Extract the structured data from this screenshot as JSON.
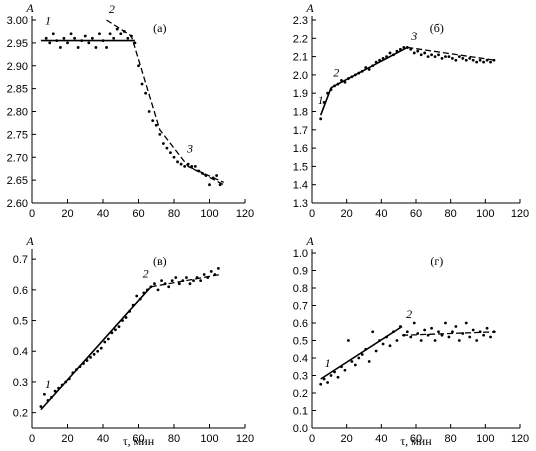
{
  "chart_data": [
    {
      "type": "scatter",
      "panel": "(a)",
      "ylabel": "A",
      "xlabel": "",
      "xlim": [
        0,
        120
      ],
      "ylim": [
        2.6,
        3.0
      ],
      "x_ticks": [
        0,
        20,
        40,
        60,
        80,
        100,
        120
      ],
      "y_ticks": [
        2.6,
        2.65,
        2.7,
        2.75,
        2.8,
        2.85,
        2.9,
        2.95,
        3.0
      ],
      "y_tick_labels": [
        "2.60",
        "2.65",
        "2.70",
        "2.75",
        "2.80",
        "2.85",
        "2.90",
        "2.95",
        "3.00"
      ],
      "points": {
        "x": [
          8,
          10,
          12,
          14,
          16,
          18,
          20,
          22,
          24,
          26,
          28,
          30,
          32,
          34,
          36,
          38,
          40,
          42,
          44,
          46,
          48,
          50,
          52,
          54,
          56,
          58,
          60,
          62,
          64,
          66,
          68,
          70,
          72,
          74,
          76,
          78,
          80,
          82,
          84,
          86,
          88,
          90,
          92,
          94,
          96,
          98,
          100,
          102,
          104,
          106
        ],
        "y": [
          2.96,
          2.95,
          2.97,
          2.955,
          2.94,
          2.96,
          2.95,
          2.97,
          2.96,
          2.94,
          2.955,
          2.965,
          2.95,
          2.96,
          2.94,
          2.97,
          2.955,
          2.94,
          2.97,
          2.96,
          2.98,
          2.97,
          2.975,
          2.96,
          2.965,
          2.95,
          2.9,
          2.86,
          2.84,
          2.8,
          2.78,
          2.77,
          2.75,
          2.73,
          2.72,
          2.71,
          2.7,
          2.69,
          2.685,
          2.68,
          2.685,
          2.68,
          2.68,
          2.67,
          2.665,
          2.66,
          2.64,
          2.655,
          2.66,
          2.64
        ]
      },
      "fits": [
        {
          "label": "1",
          "style": "solid",
          "x": [
            5,
            58
          ],
          "y": [
            2.955,
            2.955
          ]
        },
        {
          "label": "2",
          "style": "dashed",
          "x": [
            42,
            56,
            72,
            88,
            108
          ],
          "y": [
            3.0,
            2.965,
            2.76,
            2.68,
            2.64
          ]
        },
        {
          "label": "3",
          "style": "dashed",
          "x": [
            88,
            108
          ],
          "y": [
            2.68,
            2.645
          ]
        }
      ],
      "labels": [
        {
          "text": "1",
          "x": 9,
          "y": 2.99
        },
        {
          "text": "2",
          "x": 45,
          "y": 3.015
        },
        {
          "text": "3",
          "x": 89,
          "y": 2.71
        }
      ]
    },
    {
      "type": "scatter",
      "panel": "(б)",
      "ylabel": "A",
      "xlabel": "",
      "xlim": [
        0,
        120
      ],
      "ylim": [
        1.3,
        2.3
      ],
      "x_ticks": [
        0,
        20,
        40,
        60,
        80,
        100,
        120
      ],
      "y_ticks": [
        1.3,
        1.4,
        1.5,
        1.6,
        1.7,
        1.8,
        1.9,
        2.0,
        2.1,
        2.2,
        2.3
      ],
      "y_tick_labels": [
        "1.3",
        "1.4",
        "1.5",
        "1.6",
        "1.7",
        "1.8",
        "1.9",
        "2.0",
        "2.1",
        "2.2",
        "2.3"
      ],
      "points": {
        "x": [
          5,
          7,
          9,
          11,
          13,
          15,
          17,
          19,
          21,
          23,
          25,
          27,
          29,
          31,
          33,
          35,
          37,
          39,
          41,
          43,
          45,
          47,
          49,
          51,
          53,
          55,
          57,
          59,
          61,
          63,
          65,
          67,
          69,
          71,
          73,
          75,
          77,
          79,
          81,
          83,
          85,
          87,
          89,
          91,
          93,
          95,
          97,
          99,
          101,
          103,
          105
        ],
        "y": [
          1.76,
          1.85,
          1.9,
          1.92,
          1.94,
          1.95,
          1.97,
          1.96,
          1.98,
          1.99,
          2.0,
          2.01,
          2.02,
          2.04,
          2.03,
          2.05,
          2.07,
          2.08,
          2.09,
          2.1,
          2.12,
          2.11,
          2.13,
          2.14,
          2.15,
          2.15,
          2.14,
          2.12,
          2.13,
          2.11,
          2.12,
          2.1,
          2.11,
          2.1,
          2.11,
          2.09,
          2.1,
          2.1,
          2.09,
          2.08,
          2.1,
          2.09,
          2.08,
          2.09,
          2.08,
          2.07,
          2.08,
          2.07,
          2.08,
          2.07,
          2.08
        ]
      },
      "fits": [
        {
          "label": "1",
          "style": "solid",
          "x": [
            5,
            11
          ],
          "y": [
            1.78,
            1.93
          ]
        },
        {
          "label": "2",
          "style": "solid",
          "x": [
            11,
            55
          ],
          "y": [
            1.93,
            2.15
          ]
        },
        {
          "label": "3",
          "style": "dashed",
          "x": [
            55,
            106
          ],
          "y": [
            2.15,
            2.08
          ]
        }
      ],
      "labels": [
        {
          "text": "1",
          "x": 5,
          "y": 1.84
        },
        {
          "text": "2",
          "x": 14,
          "y": 1.99
        },
        {
          "text": "3",
          "x": 59,
          "y": 2.19
        }
      ]
    },
    {
      "type": "scatter",
      "panel": "(в)",
      "ylabel": "A",
      "xlabel": "τ, мин",
      "xlim": [
        0,
        120
      ],
      "ylim": [
        0.15,
        0.72
      ],
      "x_ticks": [
        0,
        20,
        40,
        60,
        80,
        100,
        120
      ],
      "y_ticks": [
        0.2,
        0.3,
        0.4,
        0.5,
        0.6,
        0.7
      ],
      "y_tick_labels": [
        "0.2",
        "0.3",
        "0.4",
        "0.5",
        "0.6",
        "0.7"
      ],
      "points": {
        "x": [
          5,
          7,
          9,
          11,
          13,
          15,
          17,
          19,
          21,
          23,
          25,
          27,
          29,
          31,
          33,
          35,
          37,
          39,
          41,
          43,
          45,
          47,
          49,
          51,
          53,
          55,
          57,
          59,
          61,
          63,
          65,
          67,
          69,
          71,
          73,
          75,
          77,
          79,
          81,
          83,
          85,
          87,
          89,
          91,
          93,
          95,
          97,
          99,
          101,
          103,
          105
        ],
        "y": [
          0.22,
          0.26,
          0.24,
          0.25,
          0.27,
          0.28,
          0.29,
          0.3,
          0.31,
          0.33,
          0.34,
          0.35,
          0.36,
          0.37,
          0.38,
          0.39,
          0.4,
          0.41,
          0.43,
          0.44,
          0.46,
          0.47,
          0.48,
          0.5,
          0.51,
          0.53,
          0.55,
          0.58,
          0.57,
          0.59,
          0.6,
          0.61,
          0.62,
          0.6,
          0.63,
          0.62,
          0.61,
          0.63,
          0.64,
          0.62,
          0.63,
          0.64,
          0.62,
          0.63,
          0.64,
          0.63,
          0.65,
          0.64,
          0.66,
          0.65,
          0.67
        ]
      },
      "fits": [
        {
          "label": "1",
          "style": "solid",
          "x": [
            5,
            67
          ],
          "y": [
            0.21,
            0.61
          ]
        },
        {
          "label": "2",
          "style": "dashed",
          "x": [
            67,
            106
          ],
          "y": [
            0.61,
            0.65
          ]
        }
      ],
      "labels": [
        {
          "text": "1",
          "x": 9,
          "y": 0.28
        },
        {
          "text": "2",
          "x": 64,
          "y": 0.64
        }
      ]
    },
    {
      "type": "scatter",
      "panel": "(г)",
      "ylabel": "A",
      "xlabel": "τ, мин",
      "xlim": [
        0,
        120
      ],
      "ylim": [
        0.0,
        1.0
      ],
      "x_ticks": [
        0,
        20,
        40,
        60,
        80,
        100,
        120
      ],
      "y_ticks": [
        0.0,
        0.1,
        0.2,
        0.3,
        0.4,
        0.5,
        0.6,
        0.7,
        0.8,
        0.9,
        1.0
      ],
      "y_tick_labels": [
        "0.0",
        "0.1",
        "0.2",
        "0.3",
        "0.4",
        "0.5",
        "0.6",
        "0.7",
        "0.8",
        "0.9",
        "1.0"
      ],
      "points": {
        "x": [
          5,
          7,
          9,
          11,
          13,
          15,
          17,
          19,
          21,
          23,
          25,
          27,
          29,
          31,
          33,
          35,
          37,
          39,
          41,
          43,
          45,
          47,
          49,
          51,
          53,
          55,
          57,
          59,
          61,
          63,
          65,
          67,
          69,
          71,
          73,
          75,
          77,
          79,
          81,
          83,
          85,
          87,
          89,
          91,
          93,
          95,
          97,
          99,
          101,
          103,
          105
        ],
        "y": [
          0.25,
          0.28,
          0.26,
          0.3,
          0.32,
          0.29,
          0.35,
          0.33,
          0.5,
          0.38,
          0.36,
          0.4,
          0.42,
          0.45,
          0.38,
          0.55,
          0.44,
          0.5,
          0.48,
          0.52,
          0.47,
          0.55,
          0.5,
          0.58,
          0.53,
          0.55,
          0.52,
          0.6,
          0.54,
          0.5,
          0.56,
          0.53,
          0.57,
          0.5,
          0.55,
          0.53,
          0.6,
          0.52,
          0.55,
          0.58,
          0.5,
          0.54,
          0.6,
          0.52,
          0.56,
          0.5,
          0.55,
          0.53,
          0.57,
          0.52,
          0.55
        ]
      },
      "fits": [
        {
          "label": "1",
          "style": "solid",
          "x": [
            5,
            52
          ],
          "y": [
            0.28,
            0.58
          ]
        },
        {
          "label": "2",
          "style": "dashed",
          "x": [
            52,
            106
          ],
          "y": [
            0.53,
            0.55
          ]
        }
      ],
      "labels": [
        {
          "text": "1",
          "x": 9,
          "y": 0.35
        },
        {
          "text": "2",
          "x": 56,
          "y": 0.63
        }
      ]
    }
  ]
}
